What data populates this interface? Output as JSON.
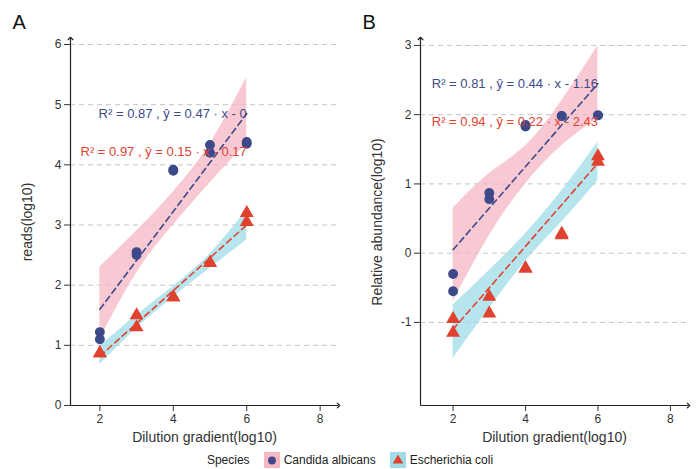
{
  "chart_data": [
    {
      "type": "scatter",
      "title": "A",
      "x_label": "Dilution gradient(log10)",
      "y_label": "reads(log10)",
      "xlim": [
        1.2,
        8.5
      ],
      "xticks": [
        2,
        4,
        6,
        8
      ],
      "ylim": [
        0,
        6.1
      ],
      "yticks": [
        0,
        1,
        2,
        3,
        4,
        5,
        6
      ],
      "grid": true,
      "legend": "bottom",
      "legend_title": "Species",
      "series": [
        {
          "name": "Candida albicans",
          "color": "#3d4a8a",
          "marker": "circle",
          "x": [
            2,
            2,
            3,
            3,
            4,
            4,
            5,
            5,
            6,
            6
          ],
          "values": [
            1.22,
            1.1,
            2.5,
            2.55,
            3.92,
            3.9,
            4.33,
            4.2,
            4.35,
            4.38
          ],
          "fit": {
            "x": [
              2,
              6
            ],
            "values": [
              1.6,
              4.85
            ],
            "line_style": "dashed"
          },
          "band": {
            "x": [
              2,
              3,
              4,
              5,
              6
            ],
            "lower": [
              1.1,
              2.2,
              3.0,
              3.7,
              4.35
            ],
            "upper": [
              2.3,
              2.9,
              3.55,
              4.35,
              5.45
            ],
            "color": "#f7b7c4"
          },
          "annotation": "R² = 0.87 , ŷ = 0.47 · x - 0"
        },
        {
          "name": "Escherichia coli",
          "color": "#e0422f",
          "marker": "triangle",
          "x": [
            2,
            2,
            3,
            3,
            4,
            4,
            5,
            5,
            6,
            6
          ],
          "values": [
            0.87,
            0.87,
            1.5,
            1.3,
            1.8,
            1.8,
            2.37,
            2.37,
            3.2,
            3.05
          ],
          "fit": {
            "x": [
              2,
              6
            ],
            "values": [
              0.82,
              3.0
            ],
            "line_style": "dashed"
          },
          "band": {
            "x": [
              2,
              3,
              4,
              5,
              6
            ],
            "lower": [
              0.68,
              1.28,
              1.8,
              2.28,
              2.75
            ],
            "upper": [
              0.98,
              1.5,
              1.98,
              2.52,
              3.25
            ],
            "color": "#9fdce8"
          },
          "annotation": "R² = 0.97 , ŷ = 0.15 · x - 0.17"
        }
      ]
    },
    {
      "type": "scatter",
      "title": "B",
      "x_label": "Dilution gradient(log10)",
      "y_label": "Relative abundance(log10)",
      "xlim": [
        1.1,
        8.5
      ],
      "xticks": [
        2,
        4,
        6,
        8
      ],
      "ylim": [
        -2.2,
        3.1
      ],
      "yticks": [
        -1,
        0,
        1,
        2,
        3
      ],
      "grid": true,
      "series": [
        {
          "name": "Candida albicans",
          "color": "#3d4a8a",
          "marker": "circle",
          "x": [
            2,
            2,
            3,
            3,
            4,
            4,
            5,
            5,
            6,
            6
          ],
          "values": [
            -0.3,
            -0.55,
            0.87,
            0.78,
            1.85,
            1.83,
            1.98,
            1.98,
            1.99,
            1.99
          ],
          "fit": {
            "x": [
              2,
              6
            ],
            "values": [
              0.05,
              2.45
            ],
            "line_style": "dashed"
          },
          "band": {
            "x": [
              2,
              3,
              4,
              5,
              6
            ],
            "lower": [
              -0.7,
              0.25,
              1.0,
              1.55,
              1.95
            ],
            "upper": [
              0.65,
              1.15,
              1.55,
              2.2,
              3.0
            ],
            "color": "#f7b7c4"
          },
          "annotation": "R² = 0.81 , ŷ = 0.44 · x - 1.16"
        },
        {
          "name": "Escherichia coli",
          "color": "#e0422f",
          "marker": "triangle",
          "x": [
            2,
            2,
            3,
            3,
            4,
            4,
            5,
            5,
            6,
            6
          ],
          "values": [
            -0.95,
            -1.15,
            -0.63,
            -0.87,
            -0.22,
            -0.22,
            0.28,
            0.26,
            1.4,
            1.32
          ],
          "fit": {
            "x": [
              2,
              6
            ],
            "values": [
              -1.1,
              1.3
            ],
            "line_style": "dashed"
          },
          "band": {
            "x": [
              2,
              3,
              4,
              5,
              6
            ],
            "lower": [
              -1.52,
              -0.8,
              -0.12,
              0.45,
              1.05
            ],
            "upper": [
              -0.75,
              -0.25,
              0.28,
              0.9,
              1.6
            ],
            "color": "#9fdce8"
          },
          "annotation": "R² = 0.94 , ŷ = 0.22 · x - 2.43"
        }
      ]
    }
  ]
}
